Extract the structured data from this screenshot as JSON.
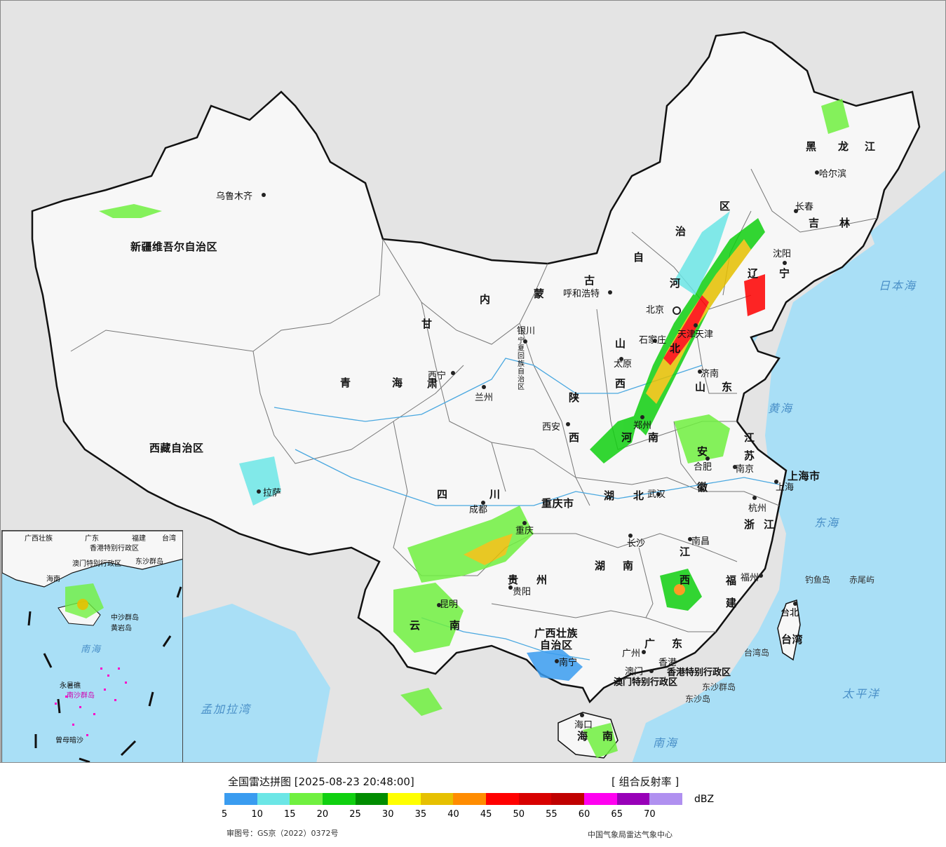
{
  "map": {
    "colors": {
      "sea": "#a9dff6",
      "land_outside": "#e4e4e4",
      "land_china": "#f7f7f7",
      "border": "#111111",
      "province_border": "#777777",
      "river": "#4aa8e0"
    },
    "provinces": [
      "新疆维吾尔自治区",
      "西藏自治区",
      "青",
      "海",
      "甘",
      "肃",
      "内",
      "蒙",
      "古",
      "自",
      "治",
      "区",
      "四",
      "川",
      "云",
      "南",
      "贵",
      "州",
      "陕",
      "西",
      "山",
      "西",
      "河",
      "南",
      "湖",
      "北",
      "湖",
      "南",
      "江",
      "西",
      "安",
      "徽",
      "江",
      "苏",
      "浙",
      "江",
      "福",
      "建",
      "山",
      "东",
      "河",
      "北",
      "辽",
      "宁",
      "吉",
      "林",
      "黑",
      "龙",
      "江",
      "广",
      "东",
      "广西壮族",
      "自治区",
      "重庆市",
      "上海市",
      "天津",
      "宁夏回族自治区",
      "海",
      "南",
      "台湾",
      "台北"
    ],
    "cities": [
      "乌鲁木齐",
      "拉萨",
      "西宁",
      "兰州",
      "银川",
      "呼和浩特",
      "北京",
      "天津",
      "石家庄",
      "太原",
      "济南",
      "郑州",
      "西安",
      "成都",
      "重庆",
      "贵阳",
      "昆明",
      "南宁",
      "长沙",
      "武汉",
      "合肥",
      "南京",
      "上海",
      "杭州",
      "南昌",
      "福州",
      "台北",
      "广州",
      "香港",
      "澳门",
      "海口",
      "沈阳",
      "长春",
      "哈尔滨"
    ],
    "seas": [
      "日本海",
      "黄海",
      "东海",
      "太平洋",
      "南海",
      "孟加拉湾"
    ],
    "islands": [
      "钓鱼岛",
      "赤尾屿",
      "台湾岛",
      "东沙群岛",
      "东沙岛",
      "香港特别行政区",
      "澳门特别行政区"
    ]
  },
  "inset": {
    "labels": [
      "广西壮族",
      "广东",
      "福建",
      "台湾",
      "香港特别行政区",
      "澳门特别行政区",
      "东沙群岛",
      "海南",
      "中沙群岛",
      "黄岩岛",
      "南海",
      "永暑礁",
      "南沙群岛",
      "曾母暗沙"
    ]
  },
  "legend": {
    "title": "全国雷达拼图 [2025-08-23 20:48:00]",
    "product": "[ 组合反射率 ]",
    "unit": "dBZ",
    "colors": [
      "#3a9cf0",
      "#6ce6e6",
      "#70f040",
      "#10d010",
      "#008c00",
      "#ffff00",
      "#e6c000",
      "#ff8c00",
      "#ff0000",
      "#d80000",
      "#c00000",
      "#ff00f0",
      "#9800b8",
      "#b090f0"
    ],
    "ticks": [
      "5",
      "10",
      "15",
      "20",
      "25",
      "30",
      "35",
      "40",
      "45",
      "50",
      "55",
      "60",
      "65",
      "70"
    ],
    "approval": "审图号：GS京（2022）0372号",
    "agency": "中国气象局雷达气象中心"
  }
}
